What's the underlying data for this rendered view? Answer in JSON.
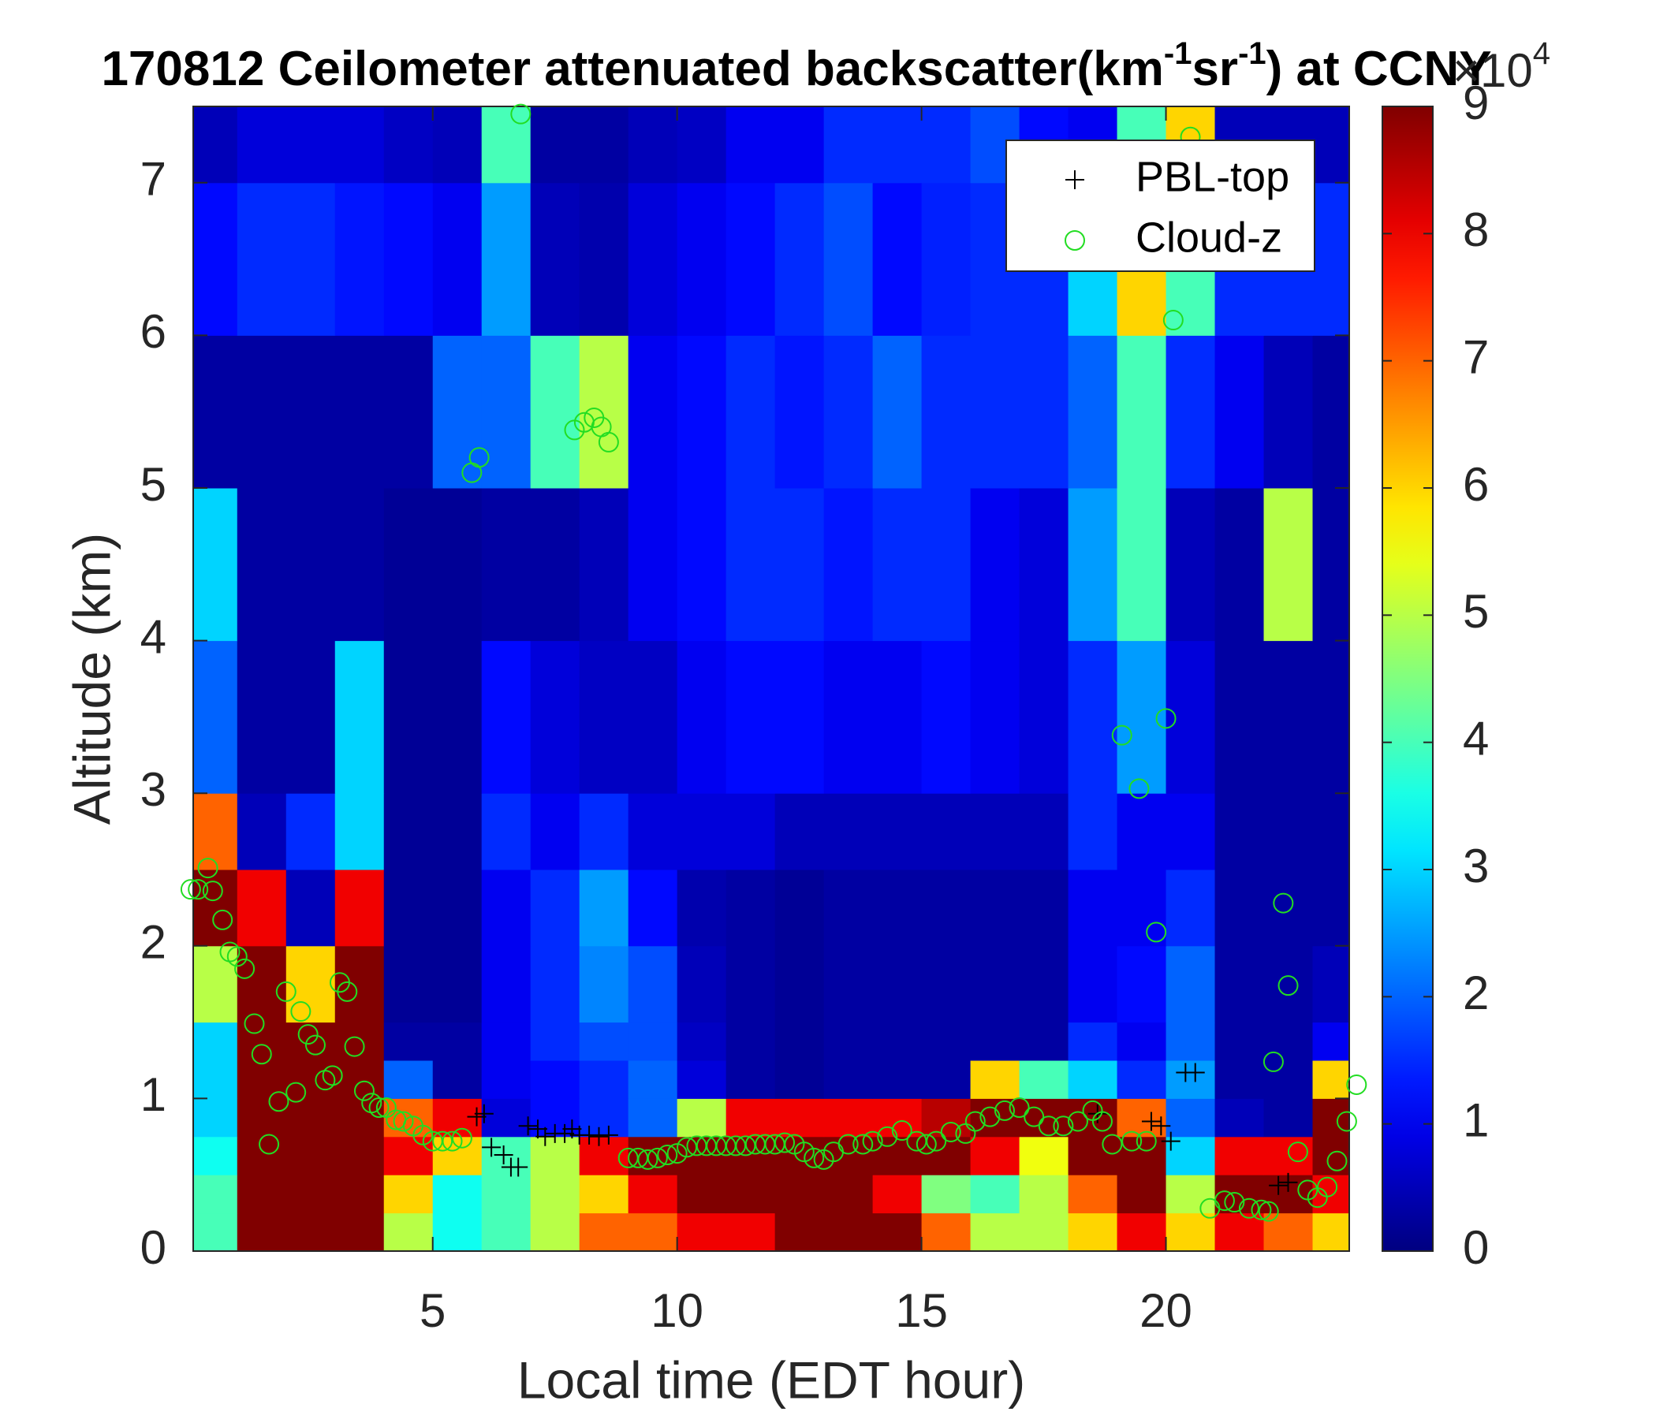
{
  "chart_data": {
    "type": "heatmap",
    "title": [
      "170812 Ceilometer attenuated backscatter(km",
      "-1",
      "sr",
      "-1",
      ") at CCNY"
    ],
    "xlabel": "Local time (EDT hour)",
    "ylabel": "Altitude (km)",
    "x_edges": [
      0,
      1,
      2,
      3,
      4,
      5,
      6,
      7,
      8,
      9,
      10,
      11,
      12,
      13,
      14,
      15,
      16,
      17,
      18,
      19,
      20,
      21,
      22,
      23,
      24
    ],
    "y_edges": [
      0,
      0.25,
      0.5,
      0.75,
      1,
      1.25,
      1.5,
      2,
      2.5,
      3,
      4,
      5,
      6,
      7,
      7.5
    ],
    "z": [
      [
        4,
        9,
        9,
        9,
        5,
        3.5,
        4,
        5,
        7,
        7,
        8,
        8,
        9,
        9,
        9,
        7,
        5,
        5,
        6,
        8,
        6,
        8,
        7,
        6
      ],
      [
        4,
        9,
        9,
        9,
        6,
        3.5,
        4,
        5,
        6,
        8,
        9,
        9,
        9,
        9,
        8,
        4.5,
        4,
        5,
        7,
        9,
        5,
        9,
        9,
        8
      ],
      [
        3.5,
        9,
        9,
        9,
        8,
        6,
        4,
        5,
        8,
        9,
        9,
        9,
        9,
        9,
        9,
        9,
        8,
        5.5,
        9,
        9,
        3,
        8,
        8,
        9
      ],
      [
        3,
        9,
        9,
        9,
        7,
        8,
        0.8,
        1.2,
        1.5,
        2,
        5,
        8,
        8,
        8,
        8,
        8.5,
        9,
        9,
        9,
        7,
        2,
        0.5,
        0.3,
        9
      ],
      [
        3,
        9,
        9,
        9,
        2,
        0.3,
        1,
        1.2,
        1.5,
        2,
        0.8,
        0.3,
        0.2,
        0.3,
        0.3,
        0.3,
        6,
        4,
        3,
        1.5,
        2.5,
        0.3,
        0.3,
        6
      ],
      [
        3,
        9,
        9,
        9,
        0.3,
        0.3,
        1,
        1.5,
        1.8,
        1.8,
        0.6,
        0.3,
        0.2,
        0.3,
        0.3,
        0.3,
        0.3,
        0.3,
        1.5,
        1,
        2,
        0.3,
        0.3,
        1
      ],
      [
        5,
        9,
        6,
        9,
        0.2,
        0.2,
        1,
        1.5,
        2.3,
        1.8,
        0.5,
        0.3,
        0.2,
        0.3,
        0.3,
        0.3,
        0.3,
        0.3,
        1,
        1.2,
        2,
        0.3,
        0.3,
        0.5
      ],
      [
        9,
        8,
        0.5,
        8,
        0.2,
        0.2,
        1,
        1.5,
        2.5,
        1.2,
        0.4,
        0.3,
        0.2,
        0.3,
        0.3,
        0.3,
        0.3,
        0.3,
        1,
        1,
        1.5,
        0.3,
        0.3,
        0.3
      ],
      [
        7,
        0.5,
        1.5,
        3,
        0.2,
        0.2,
        1.5,
        1,
        1.5,
        0.8,
        0.8,
        0.8,
        0.5,
        0.5,
        0.5,
        0.5,
        0.5,
        0.5,
        1.5,
        1,
        1,
        0.3,
        0.3,
        0.3
      ],
      [
        2,
        0.3,
        0.3,
        3,
        0.2,
        0.2,
        1.2,
        0.8,
        0.6,
        0.6,
        1,
        1.2,
        1.2,
        1,
        1,
        1.2,
        1,
        0.8,
        1.5,
        2.5,
        0.8,
        0.3,
        0.3,
        0.3
      ],
      [
        3,
        0.3,
        0.3,
        0.3,
        0.2,
        0.2,
        0.3,
        0.3,
        0.5,
        1,
        1.2,
        1.5,
        1.5,
        1.3,
        1.5,
        1.5,
        1,
        0.8,
        2.5,
        4,
        0.5,
        0.3,
        5,
        0.3
      ],
      [
        0.3,
        0.3,
        0.3,
        0.3,
        0.3,
        2,
        2,
        4,
        5,
        1,
        1.2,
        1.5,
        1.3,
        1.5,
        2,
        1.5,
        1.5,
        1.5,
        2,
        4,
        1.5,
        1,
        0.5,
        0.3
      ],
      [
        1.2,
        1.5,
        1.5,
        1.3,
        1.2,
        1,
        2.5,
        0.5,
        0.4,
        0.8,
        1,
        1.2,
        1.5,
        1.8,
        1.2,
        1.4,
        1.5,
        1.5,
        3,
        6,
        4,
        1.5,
        1.5,
        1.5
      ],
      [
        0.5,
        0.8,
        0.8,
        0.8,
        0.6,
        0.5,
        4,
        0.3,
        0.3,
        0.5,
        0.6,
        1,
        1,
        1.5,
        1.5,
        1.5,
        1.8,
        1.2,
        1,
        4,
        6,
        0.5,
        0.5,
        0.5
      ]
    ],
    "xlim": [
      0.1,
      23.75
    ],
    "ylim": [
      0,
      7.5
    ],
    "xticks": [
      5,
      10,
      15,
      20
    ],
    "yticks": [
      0,
      1,
      2,
      3,
      4,
      5,
      6,
      7
    ],
    "colorbar": {
      "colormap": "jet",
      "lim": [
        0,
        9
      ],
      "ticks": [
        0,
        1,
        2,
        3,
        4,
        5,
        6,
        7,
        8,
        9
      ],
      "scale_base": "×10",
      "scale_exponent": "4"
    },
    "legend": "northeast",
    "series": [
      {
        "name": "PBL-top",
        "marker": "+",
        "color": "#000000",
        "x": [
          5.9,
          6.05,
          6.2,
          6.45,
          6.6,
          6.75,
          6.95,
          7.15,
          7.3,
          7.5,
          7.7,
          7.85,
          8.0,
          8.2,
          8.4,
          8.6,
          18.6,
          19.7,
          19.9,
          20.1,
          20.4,
          20.6,
          22.3,
          22.5
        ],
        "y": [
          0.88,
          0.9,
          0.68,
          0.63,
          0.55,
          0.55,
          0.82,
          0.8,
          0.75,
          0.77,
          0.77,
          0.8,
          0.76,
          0.76,
          0.75,
          0.76,
          0.9,
          0.85,
          0.82,
          0.72,
          1.17,
          1.17,
          0.43,
          0.45
        ]
      },
      {
        "name": "Cloud-z",
        "marker": "o",
        "color": "#22dd22",
        "x": [
          0.05,
          0.2,
          0.4,
          0.5,
          0.7,
          0.85,
          1.0,
          1.15,
          1.35,
          1.5,
          1.65,
          1.85,
          2.0,
          2.2,
          2.3,
          2.45,
          2.6,
          2.8,
          2.95,
          3.1,
          3.25,
          3.4,
          3.6,
          3.75,
          3.9,
          4.05,
          4.25,
          4.4,
          4.6,
          4.8,
          5.0,
          5.2,
          5.4,
          5.6,
          5.8,
          5.95,
          6.8,
          7.9,
          8.1,
          8.3,
          8.45,
          8.6,
          9.0,
          9.2,
          9.4,
          9.6,
          9.8,
          10.0,
          10.2,
          10.4,
          10.6,
          10.8,
          11.0,
          11.2,
          11.4,
          11.6,
          11.8,
          12.0,
          12.2,
          12.4,
          12.6,
          12.8,
          13.0,
          13.2,
          13.5,
          13.8,
          14.0,
          14.3,
          14.6,
          14.9,
          15.1,
          15.3,
          15.6,
          15.9,
          16.1,
          16.4,
          16.7,
          17.0,
          17.3,
          17.6,
          17.9,
          18.2,
          18.5,
          18.7,
          18.9,
          19.1,
          19.3,
          19.45,
          19.6,
          19.8,
          20.0,
          20.15,
          20.5,
          20.9,
          21.2,
          21.4,
          21.7,
          21.95,
          22.1,
          22.2,
          22.4,
          22.5,
          22.7,
          22.9,
          23.1,
          23.3,
          23.5,
          23.7,
          23.9
        ],
        "y": [
          2.37,
          2.37,
          2.51,
          2.36,
          2.17,
          1.96,
          1.93,
          1.85,
          1.49,
          1.29,
          0.7,
          0.98,
          1.7,
          1.04,
          1.57,
          1.42,
          1.35,
          1.12,
          1.15,
          1.76,
          1.7,
          1.34,
          1.05,
          0.97,
          0.94,
          0.94,
          0.86,
          0.85,
          0.82,
          0.76,
          0.72,
          0.72,
          0.72,
          0.74,
          5.1,
          5.2,
          7.45,
          5.38,
          5.43,
          5.46,
          5.4,
          5.3,
          0.61,
          0.61,
          0.6,
          0.61,
          0.63,
          0.64,
          0.68,
          0.69,
          0.69,
          0.69,
          0.69,
          0.69,
          0.69,
          0.7,
          0.7,
          0.7,
          0.71,
          0.7,
          0.65,
          0.61,
          0.6,
          0.65,
          0.7,
          0.7,
          0.72,
          0.75,
          0.79,
          0.72,
          0.7,
          0.72,
          0.78,
          0.77,
          0.85,
          0.88,
          0.92,
          0.94,
          0.88,
          0.82,
          0.82,
          0.85,
          0.92,
          0.85,
          0.7,
          3.38,
          0.72,
          3.03,
          0.72,
          2.09,
          3.49,
          6.1,
          7.3,
          0.28,
          0.33,
          0.32,
          0.28,
          0.27,
          0.26,
          1.24,
          2.28,
          1.74,
          0.65,
          0.4,
          0.35,
          0.42,
          0.59,
          0.85,
          1.09
        ]
      }
    ]
  }
}
